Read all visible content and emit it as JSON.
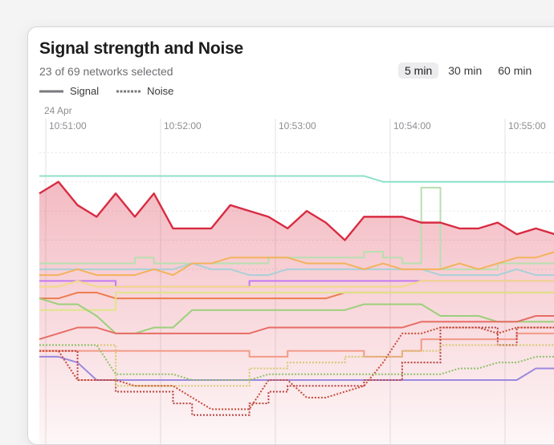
{
  "panel": {
    "title": "Signal strength and Noise",
    "subtitle": "23 of 69 networks selected",
    "ranges": [
      {
        "label": "5 min",
        "active": true
      },
      {
        "label": "30 min",
        "active": false
      },
      {
        "label": "60 min",
        "active": false
      }
    ],
    "legend": {
      "signal": "Signal",
      "noise": "Noise"
    }
  },
  "chart_data": {
    "type": "line",
    "date_label": "24 Apr",
    "x_ticks": [
      "10:51:00",
      "10:52:00",
      "10:53:00",
      "10:54:00",
      "10:55:00"
    ],
    "x": [
      0,
      10,
      20,
      30,
      40,
      50,
      60,
      70,
      80,
      90,
      100,
      110,
      120,
      130,
      140,
      150,
      160,
      170,
      180,
      190,
      200,
      210,
      220,
      230,
      240,
      250,
      260,
      270,
      280
    ],
    "highlight": {
      "color": "#d92b42",
      "values": [
        -47,
        -45,
        -49,
        -51,
        -47,
        -51,
        -47,
        -53,
        -53,
        -53,
        -49,
        -50,
        -51,
        -53,
        -50,
        -52,
        -55,
        -51,
        -51,
        -51,
        -52,
        -52,
        -53,
        -53,
        -52,
        -54,
        -53,
        -54,
        -57
      ],
      "fill": true
    },
    "signal_series": [
      {
        "color": "#8ee0c8",
        "values": [
          -44,
          -44,
          -44,
          -44,
          -44,
          -44,
          -44,
          -44,
          -44,
          -44,
          -44,
          -44,
          -44,
          -44,
          -44,
          -44,
          -44,
          -44,
          -45,
          -45,
          -45,
          -45,
          -45,
          -45,
          -45,
          -45,
          -45,
          -45,
          -45
        ]
      },
      {
        "color": "#b8dfb0",
        "values": [
          -59,
          -59,
          -59,
          -59,
          -59,
          -58,
          -59,
          -59,
          -59,
          -59,
          -59,
          -59,
          -58,
          -58,
          -58,
          -58,
          -58,
          -57,
          -58,
          -59,
          -46,
          -60,
          -60,
          -60,
          -59,
          -59,
          -59,
          -59,
          -59
        ]
      },
      {
        "color": "#a9d0d8",
        "values": [
          -60,
          -60,
          -60,
          -60,
          -60,
          -60,
          -60,
          -60,
          -59,
          -60,
          -60,
          -61,
          -61,
          -60,
          -60,
          -60,
          -60,
          -60,
          -60,
          -60,
          -60,
          -61,
          -61,
          -61,
          -61,
          -60,
          -61,
          -61,
          -61
        ]
      },
      {
        "color": "#f3b25c",
        "values": [
          -61,
          -61,
          -60,
          -61,
          -61,
          -61,
          -60,
          -61,
          -59,
          -59,
          -58,
          -58,
          -58,
          -58,
          -59,
          -59,
          -59,
          -60,
          -59,
          -60,
          -60,
          -60,
          -59,
          -60,
          -59,
          -58,
          -58,
          -57,
          -57
        ]
      },
      {
        "color": "#c37af0",
        "values": [
          -62,
          -62,
          -62,
          -62,
          -63,
          -63,
          -63,
          -63,
          -63,
          -63,
          -63,
          -62,
          -62,
          -62,
          -62,
          -62,
          -62,
          -62,
          -62,
          -62,
          -62,
          -62,
          -62,
          -62,
          -62,
          -62,
          -62,
          -62,
          -62
        ]
      },
      {
        "color": "#ed7c4e",
        "values": [
          -65,
          -65,
          -64,
          -64,
          -65,
          -65,
          -65,
          -65,
          -65,
          -65,
          -65,
          -65,
          -65,
          -65,
          -65,
          -65,
          -64,
          -64,
          -64,
          -64,
          -64,
          -64,
          -64,
          -64,
          -64,
          -64,
          -64,
          -64,
          -64
        ]
      },
      {
        "color": "#f2d88a",
        "values": [
          -63,
          -63,
          -62,
          -63,
          -63,
          -63,
          -63,
          -63,
          -63,
          -63,
          -63,
          -63,
          -63,
          -63,
          -63,
          -63,
          -63,
          -63,
          -63,
          -63,
          -62,
          -62,
          -62,
          -62,
          -62,
          -62,
          -62,
          -62,
          -62
        ]
      },
      {
        "color": "#dfe58a",
        "values": [
          -67,
          -67,
          -67,
          -67,
          -64,
          -64,
          -64,
          -64,
          -64,
          -64,
          -64,
          -64,
          -64,
          -64,
          -64,
          -64,
          -64,
          -64,
          -64,
          -64,
          -64,
          -64,
          -64,
          -64,
          -64,
          -64,
          -64,
          -64,
          -64
        ]
      },
      {
        "color": "#9ccf7a",
        "values": [
          -65,
          -66,
          -66,
          -68,
          -71,
          -71,
          -70,
          -70,
          -67,
          -67,
          -67,
          -67,
          -67,
          -67,
          -67,
          -67,
          -67,
          -66,
          -66,
          -66,
          -66,
          -68,
          -68,
          -68,
          -69,
          -69,
          -69,
          -69,
          -69
        ]
      },
      {
        "color": "#e76d66",
        "values": [
          -72,
          -71,
          -70,
          -70,
          -71,
          -71,
          -71,
          -71,
          -71,
          -71,
          -71,
          -71,
          -70,
          -70,
          -70,
          -70,
          -70,
          -70,
          -70,
          -70,
          -69,
          -69,
          -69,
          -69,
          -69,
          -69,
          -68,
          -68,
          -68
        ]
      },
      {
        "color": "#f29a86",
        "values": [
          -74,
          -74,
          -74,
          -74,
          -74,
          -74,
          -74,
          -74,
          -74,
          -74,
          -74,
          -75,
          -75,
          -74,
          -74,
          -74,
          -74,
          -75,
          -75,
          -74,
          -72,
          -72,
          -72,
          -72,
          -72,
          -71,
          -71,
          -71,
          -71
        ]
      },
      {
        "color": "#9b88e0",
        "values": [
          -75,
          -75,
          -76,
          -79,
          -79,
          -79,
          -79,
          -79,
          -79,
          -79,
          -79,
          -79,
          -79,
          -79,
          -79,
          -79,
          -79,
          -79,
          -79,
          -79,
          -79,
          -79,
          -79,
          -79,
          -79,
          -79,
          -77,
          -77,
          -77
        ]
      }
    ],
    "noise_series": [
      {
        "color": "#b8423f",
        "values": [
          -74,
          -74,
          -79,
          -79,
          -81,
          -81,
          -81,
          -83,
          -85,
          -85,
          -85,
          -83,
          -81,
          -80,
          -80,
          -80,
          -80,
          -79,
          -79,
          -76,
          -76,
          -70,
          -70,
          -70,
          -73,
          -70,
          -70,
          -68,
          -73
        ]
      },
      {
        "color": "#c84a35",
        "values": [
          -74,
          -74,
          -79,
          -79,
          -79,
          -80,
          -80,
          -80,
          -82,
          -84,
          -84,
          -84,
          -79,
          -79,
          -82,
          -82,
          -81,
          -80,
          -76,
          -71,
          -71,
          -70,
          -70,
          -70,
          -71,
          -70,
          -70,
          -70,
          -73
        ]
      },
      {
        "color": "#d6c870",
        "values": [
          -73,
          -73,
          -73,
          -73,
          -80,
          -80,
          -80,
          -80,
          -80,
          -80,
          -80,
          -77,
          -77,
          -76,
          -76,
          -76,
          -75,
          -75,
          -75,
          -74,
          -74,
          -73,
          -73,
          -73,
          -73,
          -73,
          -73,
          -72,
          -72
        ]
      },
      {
        "color": "#8fc06a",
        "values": [
          -73,
          -73,
          -73,
          -73,
          -78,
          -78,
          -78,
          -78,
          -79,
          -79,
          -79,
          -79,
          -78,
          -78,
          -78,
          -78,
          -78,
          -78,
          -78,
          -78,
          -78,
          -78,
          -77,
          -77,
          -76,
          -76,
          -75,
          -75,
          -75
        ]
      }
    ],
    "ylim": [
      -90,
      -35
    ]
  }
}
